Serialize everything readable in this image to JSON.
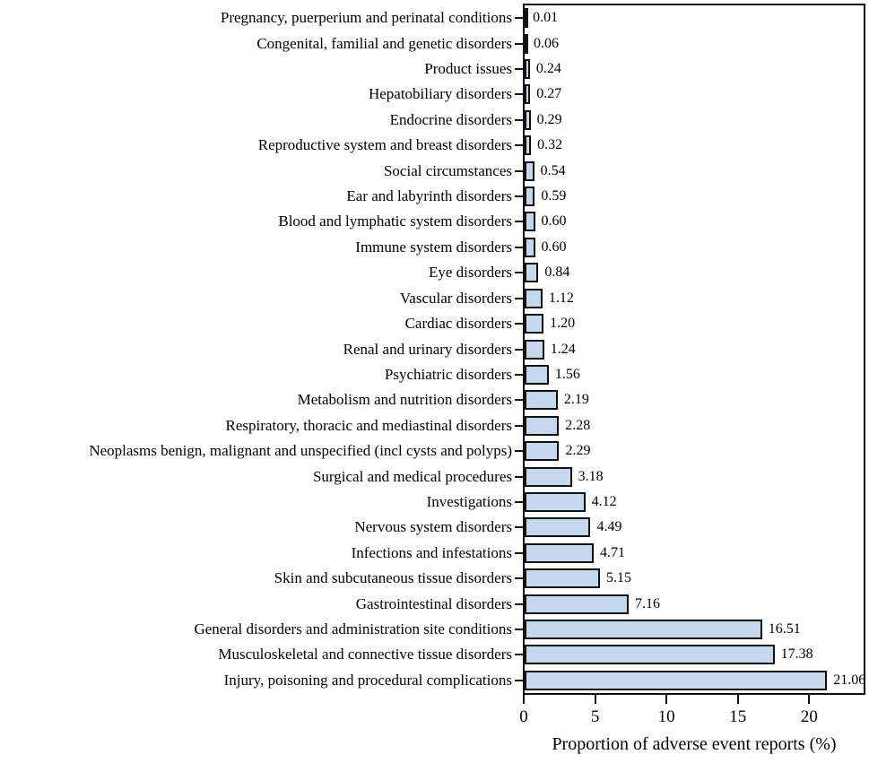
{
  "figure": {
    "background": "#ffffff",
    "text_color": "#000000"
  },
  "chart_data": {
    "type": "bar",
    "orientation": "horizontal",
    "title": "",
    "xlabel": "Proportion of adverse event reports (%)",
    "ylabel": "",
    "xlim": [
      0,
      24
    ],
    "xticks": [
      0,
      5,
      10,
      15,
      20
    ],
    "grid": false,
    "legend": false,
    "bar_color": "#c6d8ec",
    "bar_border_color": "#111111",
    "categories": [
      "Pregnancy, puerperium and perinatal conditions",
      "Congenital, familial and genetic disorders",
      "Product issues",
      "Hepatobiliary disorders",
      "Endocrine disorders",
      "Reproductive system and breast disorders",
      "Social circumstances",
      "Ear and labyrinth disorders",
      "Blood and lymphatic system disorders",
      "Immune system disorders",
      "Eye disorders",
      "Vascular disorders",
      "Cardiac disorders",
      "Renal and urinary disorders",
      "Psychiatric disorders",
      "Metabolism and nutrition disorders",
      "Respiratory, thoracic and mediastinal disorders",
      "Neoplasms benign, malignant and unspecified (incl cysts and polyps)",
      "Surgical and medical procedures",
      "Investigations",
      "Nervous system disorders",
      "Infections and infestations",
      "Skin and subcutaneous tissue disorders",
      "Gastrointestinal disorders",
      "General disorders and administration site conditions",
      "Musculoskeletal and connective tissue disorders",
      "Injury, poisoning and procedural complications"
    ],
    "values": [
      0.01,
      0.06,
      0.24,
      0.27,
      0.29,
      0.32,
      0.54,
      0.59,
      0.6,
      0.6,
      0.84,
      1.12,
      1.2,
      1.24,
      1.56,
      2.19,
      2.28,
      2.29,
      3.18,
      4.12,
      4.49,
      4.71,
      5.15,
      7.16,
      16.51,
      17.38,
      21.06
    ],
    "value_labels": [
      "0.01",
      "0.06",
      "0.24",
      "0.27",
      "0.29",
      "0.32",
      "0.54",
      "0.59",
      "0.60",
      "0.60",
      "0.84",
      "1.12",
      "1.20",
      "1.24",
      "1.56",
      "2.19",
      "2.28",
      "2.29",
      "3.18",
      "4.12",
      "4.49",
      "4.71",
      "5.15",
      "7.16",
      "16.51",
      "17.38",
      "21.06"
    ],
    "xtick_labels": [
      "0",
      "5",
      "10",
      "15",
      "20"
    ]
  }
}
